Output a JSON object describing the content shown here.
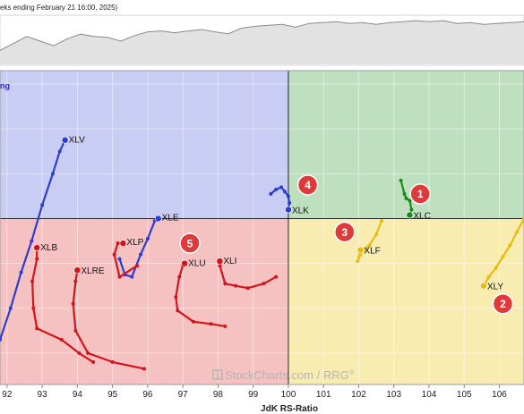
{
  "header": {
    "text": "eks ending February 21 16:00, 2025)"
  },
  "quadrant_label": "ng",
  "watermark": {
    "brand": "StockCharts.com",
    "sep": " / ",
    "product": "RRG",
    "reg": "®"
  },
  "colors": {
    "leading": "#bfe0bf",
    "weakening": "#f9ecb1",
    "lagging": "#f6c1c1",
    "improving": "#c9cdf3",
    "blue": "#2c3ed1",
    "red": "#d4141c",
    "green": "#1a8a1a",
    "gold": "#e6bd10",
    "badge": "#e0393a"
  },
  "chart_data": {
    "type": "scatter",
    "subtype": "relative-rotation-graph",
    "xlabel": "JdK RS-Ratio",
    "xlim": [
      91.8,
      106.7
    ],
    "ylim": [
      96.3,
      103.3
    ],
    "center": [
      100,
      100
    ],
    "x_ticks": [
      "92",
      "93",
      "94",
      "95",
      "96",
      "97",
      "98",
      "99",
      "100",
      "101",
      "102",
      "103",
      "104",
      "105",
      "106"
    ],
    "series": [
      {
        "name": "XLV",
        "color": "blue",
        "label_offset": [
          4,
          3
        ],
        "points": [
          [
            91.8,
            97.3
          ],
          [
            92.1,
            98.0
          ],
          [
            92.4,
            98.8
          ],
          [
            92.7,
            99.5
          ],
          [
            93.0,
            100.3
          ],
          [
            93.3,
            101.0
          ],
          [
            93.5,
            101.5
          ],
          [
            93.65,
            101.75
          ]
        ]
      },
      {
        "name": "XLE",
        "color": "blue",
        "label_offset": [
          4,
          2
        ],
        "points": [
          [
            95.2,
            99.1
          ],
          [
            95.35,
            98.75
          ],
          [
            95.55,
            98.7
          ],
          [
            95.8,
            99.2
          ],
          [
            96.0,
            99.55
          ],
          [
            96.2,
            99.95
          ],
          [
            96.3,
            100.0
          ]
        ]
      },
      {
        "name": "XLK",
        "color": "blue",
        "label_offset": [
          4,
          4
        ],
        "points": [
          [
            99.5,
            100.55
          ],
          [
            99.65,
            100.65
          ],
          [
            99.8,
            100.7
          ],
          [
            99.9,
            100.6
          ],
          [
            100.0,
            100.5
          ],
          [
            100.03,
            100.35
          ],
          [
            100.0,
            100.2
          ]
        ]
      },
      {
        "name": "XLC",
        "color": "green",
        "label_offset": [
          4,
          4
        ],
        "points": [
          [
            103.2,
            100.85
          ],
          [
            103.3,
            100.55
          ],
          [
            103.35,
            100.45
          ],
          [
            103.45,
            100.4
          ],
          [
            103.5,
            100.2
          ],
          [
            103.45,
            100.08
          ]
        ]
      },
      {
        "name": "XLF",
        "color": "gold",
        "label_offset": [
          4,
          4
        ],
        "points": [
          [
            102.65,
            99.95
          ],
          [
            102.5,
            99.65
          ],
          [
            102.3,
            99.4
          ],
          [
            102.15,
            99.3
          ],
          [
            102.05,
            99.2
          ],
          [
            101.97,
            99.05
          ],
          [
            102.05,
            99.3
          ]
        ]
      },
      {
        "name": "XLY",
        "color": "gold",
        "label_offset": [
          4,
          4
        ],
        "points": [
          [
            106.7,
            100.0
          ],
          [
            106.5,
            99.7
          ],
          [
            106.3,
            99.4
          ],
          [
            106.1,
            99.15
          ],
          [
            105.9,
            98.9
          ],
          [
            105.7,
            98.7
          ],
          [
            105.55,
            98.5
          ]
        ]
      },
      {
        "name": "XLB",
        "color": "red",
        "label_offset": [
          4,
          3
        ],
        "points": [
          [
            94.45,
            96.8
          ],
          [
            94.05,
            97.0
          ],
          [
            93.55,
            97.3
          ],
          [
            92.85,
            97.55
          ],
          [
            92.75,
            98.0
          ],
          [
            92.72,
            98.6
          ],
          [
            92.85,
            99.1
          ],
          [
            92.85,
            99.35
          ]
        ]
      },
      {
        "name": "XLRE",
        "color": "red",
        "label_offset": [
          4,
          4
        ],
        "points": [
          [
            95.9,
            96.65
          ],
          [
            95.0,
            96.8
          ],
          [
            94.3,
            97.0
          ],
          [
            93.95,
            97.5
          ],
          [
            93.88,
            98.1
          ],
          [
            93.95,
            98.6
          ],
          [
            94.0,
            98.85
          ]
        ]
      },
      {
        "name": "XLP",
        "color": "red",
        "label_offset": [
          4,
          2
        ],
        "points": [
          [
            95.7,
            98.95
          ],
          [
            95.2,
            98.7
          ],
          [
            95.05,
            99.2
          ],
          [
            95.15,
            99.45
          ],
          [
            95.3,
            99.45
          ]
        ]
      },
      {
        "name": "XLU",
        "color": "red",
        "label_offset": [
          4,
          3
        ],
        "points": [
          [
            98.2,
            97.6
          ],
          [
            97.8,
            97.65
          ],
          [
            97.3,
            97.7
          ],
          [
            96.85,
            97.95
          ],
          [
            96.8,
            98.25
          ],
          [
            96.9,
            98.7
          ],
          [
            97.0,
            98.95
          ],
          [
            97.05,
            99.0
          ]
        ]
      },
      {
        "name": "XLI",
        "color": "red",
        "label_offset": [
          4,
          3
        ],
        "points": [
          [
            99.65,
            98.7
          ],
          [
            99.3,
            98.55
          ],
          [
            98.85,
            98.45
          ],
          [
            98.5,
            98.5
          ],
          [
            98.2,
            98.55
          ],
          [
            98.05,
            98.95
          ],
          [
            98.05,
            99.05
          ]
        ]
      }
    ],
    "badges": [
      {
        "label": "1",
        "x": 103.75,
        "y": 100.55
      },
      {
        "label": "2",
        "x": 106.1,
        "y": 98.1
      },
      {
        "label": "3",
        "x": 101.6,
        "y": 99.7
      },
      {
        "label": "4",
        "x": 100.55,
        "y": 100.75
      },
      {
        "label": "5",
        "x": 97.2,
        "y": 99.45
      }
    ],
    "benchmark_line": [
      0.3,
      0.45,
      0.6,
      0.5,
      0.4,
      0.55,
      0.65,
      0.6,
      0.58,
      0.5,
      0.62,
      0.7,
      0.72,
      0.68,
      0.72,
      0.75,
      0.7,
      0.66,
      0.78,
      0.82,
      0.84,
      0.86,
      0.8,
      0.88,
      0.9,
      0.92,
      0.88,
      0.9,
      0.86,
      0.9,
      0.92,
      0.94,
      0.92,
      0.94,
      0.88,
      0.9,
      0.86,
      0.88,
      0.9,
      0.92
    ]
  }
}
